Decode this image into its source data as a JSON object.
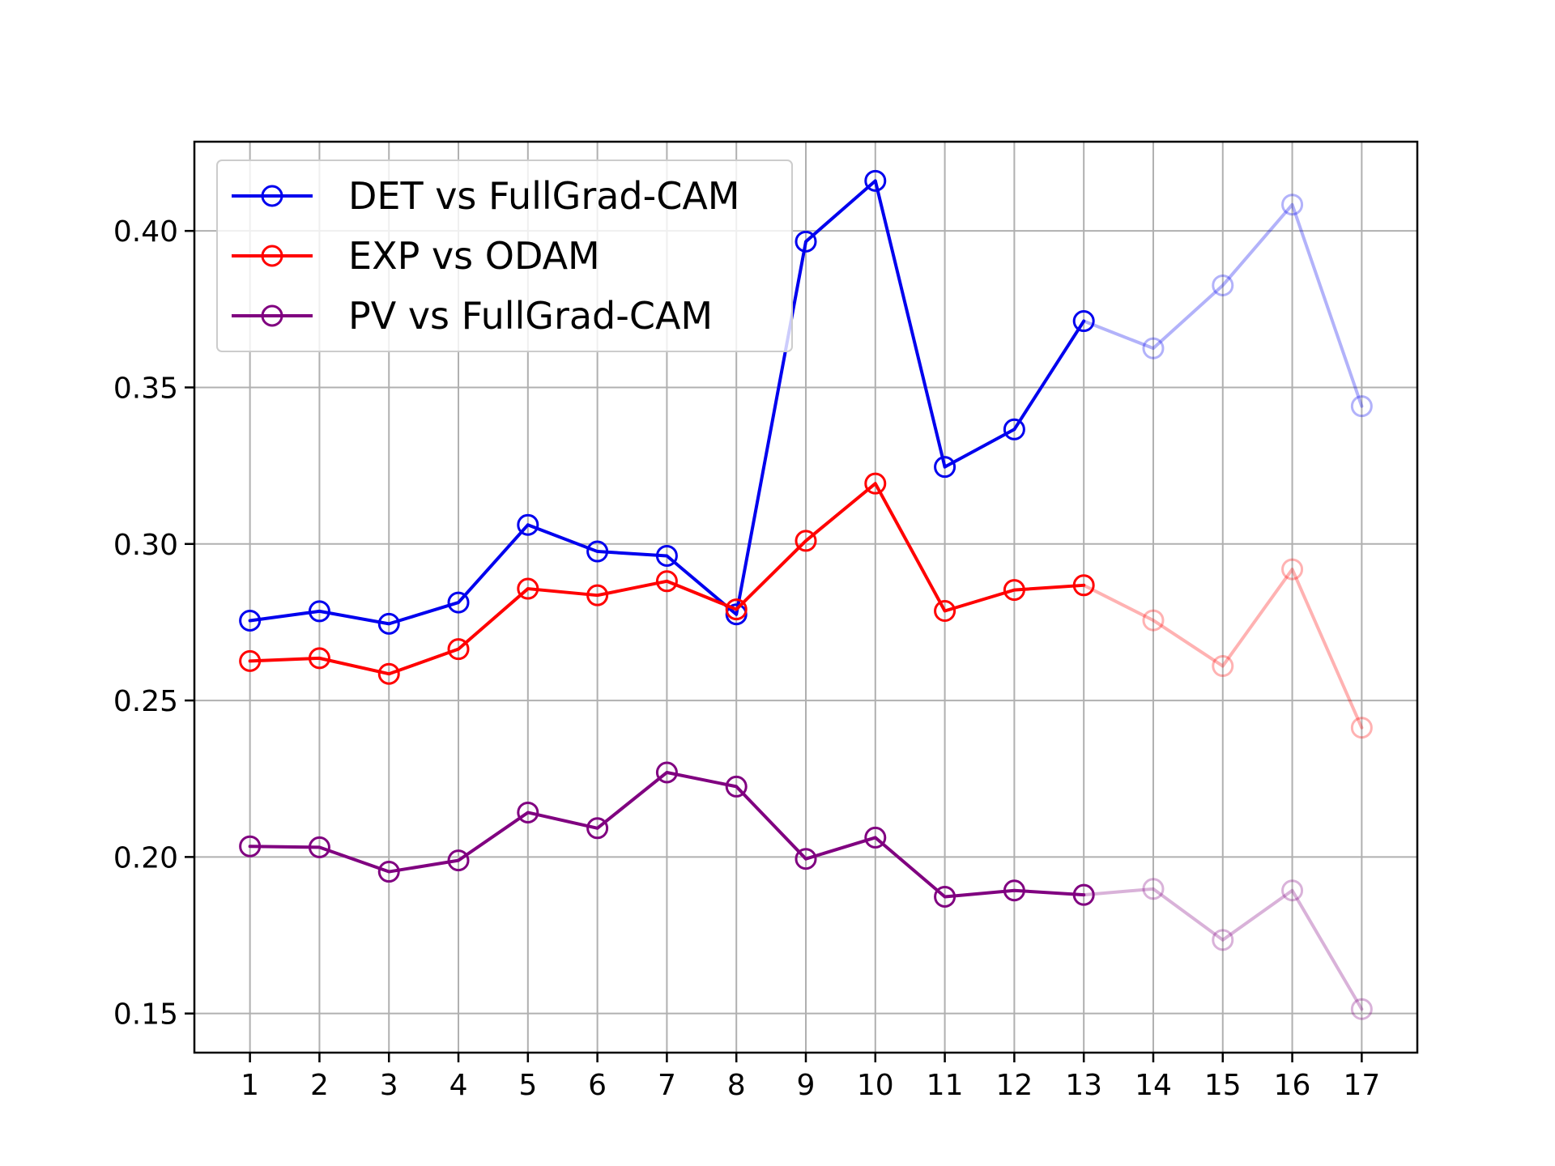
{
  "chart_data": {
    "type": "line",
    "title": "",
    "xlabel": "",
    "ylabel": "",
    "x": [
      1,
      2,
      3,
      4,
      5,
      6,
      7,
      8,
      9,
      10,
      11,
      12,
      13,
      14,
      15,
      16,
      17
    ],
    "x_tick_labels": [
      "1",
      "2",
      "3",
      "4",
      "5",
      "6",
      "7",
      "8",
      "9",
      "10",
      "11",
      "12",
      "13",
      "14",
      "15",
      "16",
      "17"
    ],
    "y_ticks": [
      0.15,
      0.2,
      0.25,
      0.3,
      0.35,
      0.4
    ],
    "y_tick_labels": [
      "0.15",
      "0.20",
      "0.25",
      "0.30",
      "0.35",
      "0.40"
    ],
    "xlim": [
      0.2,
      17.8
    ],
    "ylim": [
      0.1375,
      0.4285
    ],
    "grid": true,
    "legend_position": "top-left",
    "faded_from_x": 13,
    "series": [
      {
        "name": "DET vs FullGrad-CAM",
        "color": "#0000ee",
        "values": [
          0.2755,
          0.2785,
          0.2745,
          0.2813,
          0.3061,
          0.2976,
          0.2962,
          0.2775,
          0.3966,
          0.416,
          0.3246,
          0.3366,
          0.3712,
          0.3625,
          0.3826,
          0.4084,
          0.344
        ]
      },
      {
        "name": "EXP vs ODAM",
        "color": "#ff0000",
        "values": [
          0.2626,
          0.2635,
          0.2585,
          0.2664,
          0.2857,
          0.2836,
          0.2881,
          0.2791,
          0.301,
          0.3193,
          0.2786,
          0.2853,
          0.2868,
          0.2756,
          0.261,
          0.2919,
          0.2413
        ]
      },
      {
        "name": "PV vs FullGrad-CAM",
        "color": "#800080",
        "values": [
          0.2034,
          0.2031,
          0.1953,
          0.1989,
          0.2142,
          0.2092,
          0.227,
          0.2225,
          0.1994,
          0.2062,
          0.1873,
          0.1893,
          0.1879,
          0.1898,
          0.1735,
          0.1893,
          0.1514
        ]
      }
    ]
  }
}
